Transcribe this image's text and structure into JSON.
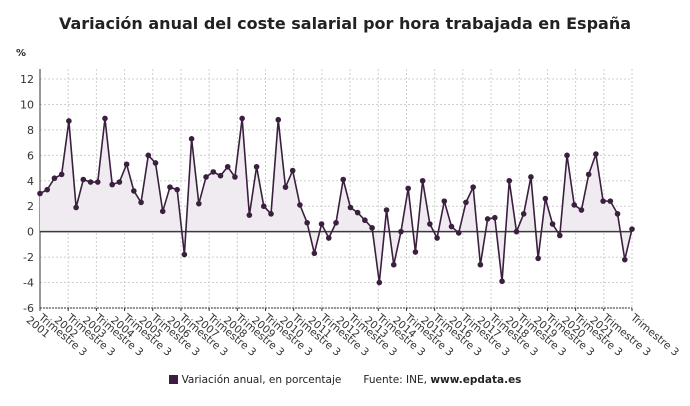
{
  "title": "Variación anual del coste salarial por hora trabajada en España",
  "unit": "%",
  "legend": {
    "series_label": "Variación anual, en porcentaje",
    "source_prefix": "Fuente: INE, ",
    "source_site": "www.epdata.es"
  },
  "colors": {
    "line": "#3b1f3f",
    "fill": "#efebf1",
    "zero": "#3a3a3a",
    "grid": "#cfcfcf"
  },
  "chart_data": {
    "type": "area",
    "title": "Variación anual del coste salarial por hora trabajada en España",
    "ylabel": "%",
    "ylim": [
      -6,
      12
    ],
    "yticks": [
      -6,
      -4,
      -2,
      0,
      2,
      4,
      6,
      8,
      10,
      12
    ],
    "grid": true,
    "legend_position": "bottom",
    "x_tick_labels": [
      {
        "year": "2001",
        "q": "Trimestre 3"
      },
      {
        "year": "2002",
        "q": "Trimestre 3"
      },
      {
        "year": "2003",
        "q": "Trimestre 3"
      },
      {
        "year": "2004",
        "q": "Trimestre 3"
      },
      {
        "year": "2005",
        "q": "Trimestre 3"
      },
      {
        "year": "2006",
        "q": "Trimestre 3"
      },
      {
        "year": "2007",
        "q": "Trimestre 3"
      },
      {
        "year": "2008",
        "q": "Trimestre 3"
      },
      {
        "year": "2009",
        "q": "Trimestre 3"
      },
      {
        "year": "2010",
        "q": "Trimestre 3"
      },
      {
        "year": "2011",
        "q": "Trimestre 3"
      },
      {
        "year": "2012",
        "q": "Trimestre 3"
      },
      {
        "year": "2013",
        "q": "Trimestre 3"
      },
      {
        "year": "2014",
        "q": "Trimestre 3"
      },
      {
        "year": "2015",
        "q": "Trimestre 3"
      },
      {
        "year": "2016",
        "q": "Trimestre 3"
      },
      {
        "year": "2017",
        "q": "Trimestre 3"
      },
      {
        "year": "2018",
        "q": "Trimestre 3"
      },
      {
        "year": "2019",
        "q": "Trimestre 3"
      },
      {
        "year": "2020",
        "q": "Trimestre 3"
      },
      {
        "year": "2021",
        "q": "Trimestre 3"
      },
      {
        "year": "",
        "q": "Trimestre 3"
      }
    ],
    "series": [
      {
        "name": "Variación anual, en porcentaje",
        "values": [
          3.0,
          3.3,
          4.2,
          4.5,
          8.7,
          1.9,
          4.1,
          3.9,
          3.9,
          8.9,
          3.7,
          3.9,
          5.3,
          3.2,
          2.3,
          6.0,
          5.4,
          1.6,
          3.5,
          3.3,
          -1.8,
          7.3,
          2.2,
          4.3,
          4.7,
          4.4,
          5.1,
          4.3,
          8.9,
          1.3,
          5.1,
          2.0,
          1.4,
          8.8,
          3.5,
          4.8,
          2.1,
          0.7,
          -1.7,
          0.6,
          -0.5,
          0.7,
          4.1,
          1.9,
          1.5,
          0.9,
          0.3,
          -4.0,
          1.7,
          -2.6,
          0.0,
          3.4,
          -1.6,
          4.0,
          0.6,
          -0.5,
          2.4,
          0.4,
          -0.1,
          2.3,
          3.5,
          -2.6,
          1.0,
          1.1,
          -3.9,
          4.0,
          0.0,
          1.4,
          4.3,
          -2.1,
          2.6,
          0.6,
          -0.3,
          6.0,
          2.1,
          1.7,
          4.5,
          6.1,
          2.4,
          2.4,
          1.4,
          -2.2,
          0.2
        ]
      }
    ]
  }
}
